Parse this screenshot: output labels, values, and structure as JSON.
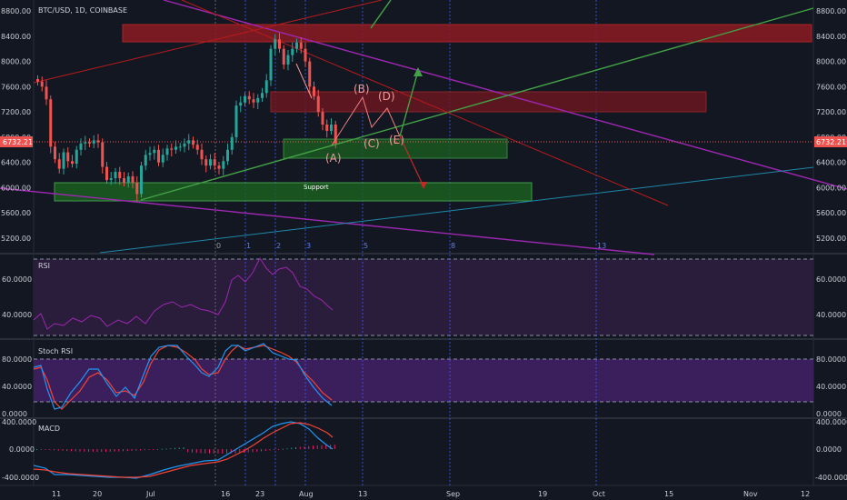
{
  "header": {
    "symbol_label": "BTC/USD, 1D, COINBASE"
  },
  "price_axis": {
    "ticks": [
      8800,
      8400,
      8000,
      7600,
      7200,
      6800,
      6400,
      6000,
      5600,
      5200
    ],
    "tick_labels": [
      "8800.00",
      "8400.00",
      "8000.00",
      "7600.00",
      "7200.00",
      "6800.00",
      "6400.00",
      "6000.00",
      "5600.00",
      "5200.00"
    ],
    "last_price_label": "6732.21"
  },
  "time_axis": {
    "labels": [
      "11",
      "20",
      "Jul",
      "16",
      "23",
      "Aug",
      "13",
      "Sep",
      "19",
      "Oct",
      "15",
      "Nov",
      "12"
    ]
  },
  "annotations": {
    "support_label": "Support",
    "wave_labels": [
      "(A)",
      "(B)",
      "(C)",
      "(D)",
      "(E)"
    ],
    "fib_labels": [
      "0",
      "1",
      "2",
      "3",
      "5",
      "8",
      "13"
    ]
  },
  "rsi_panel": {
    "title": "RSI",
    "tick_labels": [
      "60.0000",
      "40.0000"
    ],
    "ticks": [
      60,
      40
    ]
  },
  "stoch_panel": {
    "title": "Stoch RSI",
    "tick_labels": [
      "80.0000",
      "40.0000",
      "0.0000"
    ],
    "ticks": [
      80,
      40,
      0
    ]
  },
  "macd_panel": {
    "title": "MACD",
    "tick_labels": [
      "400.0000",
      "0.0000",
      "-400.0000"
    ],
    "ticks": [
      400,
      0,
      -400
    ]
  },
  "colors": {
    "background": "#131722",
    "up": "#26a69a",
    "down": "#ef5350",
    "support_zone": "#2e7d32",
    "resistance_zone": "#8b1a22",
    "rsi": "#9c27b0",
    "stoch_k": "#2196f3",
    "stoch_d": "#f44336"
  },
  "chart_data": {
    "type": "candlestick",
    "title": "BTC/USD, 1D, COINBASE",
    "close": [
      7680,
      7600,
      7400,
      6650,
      6450,
      6300,
      6560,
      6420,
      6380,
      6600,
      6700,
      6720,
      6700,
      6750,
      6720,
      6330,
      6120,
      6150,
      6250,
      6150,
      6080,
      6180,
      6080,
      5900,
      6350,
      6520,
      6550,
      6600,
      6400,
      6520,
      6620,
      6600,
      6650,
      6650,
      6700,
      6750,
      6680,
      6600,
      6450,
      6350,
      6450,
      6350,
      6300,
      6420,
      6600,
      6800,
      7300,
      7350,
      7450,
      7400,
      7350,
      7420,
      7500,
      7700,
      8200,
      8350,
      8200,
      7950,
      8100,
      8200,
      8300,
      8200,
      8000,
      7600,
      7450,
      7200,
      7000,
      6900,
      7000,
      6700
    ],
    "ylim": [
      5000,
      8850
    ]
  }
}
